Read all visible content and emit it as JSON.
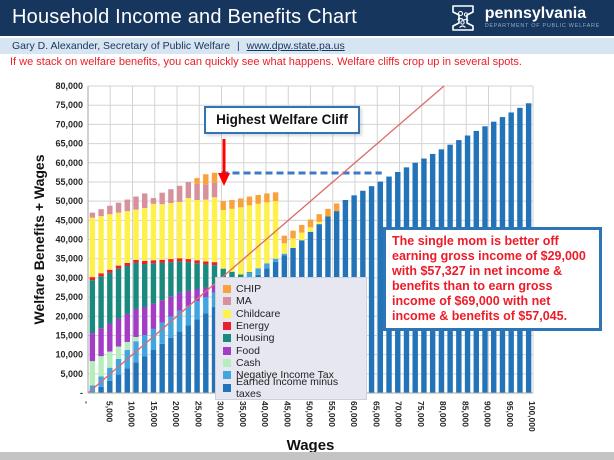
{
  "header": {
    "title": "Household Income and Benefits Chart",
    "brand": {
      "name": "pennsylvania",
      "dept": "DEPARTMENT OF PUBLIC WELFARE"
    }
  },
  "subheader": {
    "author": "Gary D. Alexander,  Secretary of Public Welfare",
    "divider": "|",
    "link": "www.dpw.state.pa.us"
  },
  "intro": {
    "text": "If we stack on welfare benefits, you can quickly see what happens. Welfare cliffs crop up in several spots."
  },
  "callout": {
    "label": "Highest Welfare Cliff"
  },
  "note": {
    "text": "The single mom is better off earning gross income of $29,000 with $57,327 in net income & benefits than to earn gross income of $69,000 with net income & benefits of $57,045."
  },
  "colors": {
    "header_navy": "#17365D",
    "subheader_blue": "#D7E4F1",
    "alert_red": "#EE1C25",
    "box_border_blue": "#2E75B6"
  },
  "chart_data": {
    "type": "bar",
    "stacked": true,
    "title": "",
    "xlabel": "Wages",
    "ylabel": "Welfare Benefits + Wages",
    "xlim": [
      0,
      100000
    ],
    "ylim": [
      0,
      80000
    ],
    "grid": true,
    "legend_position": "inside-center-left",
    "x_ticks": [
      "-",
      "5,000",
      "10,000",
      "15,000",
      "20,000",
      "25,000",
      "30,000",
      "35,000",
      "40,000",
      "45,000",
      "50,000",
      "55,000",
      "60,000",
      "65,000",
      "70,000",
      "75,000",
      "80,000",
      "85,000",
      "90,000",
      "95,000",
      "100,000"
    ],
    "y_ticks": [
      "-",
      "5,000",
      "10,000",
      "15,000",
      "20,000",
      "25,000",
      "30,000",
      "35,000",
      "40,000",
      "45,000",
      "50,000",
      "55,000",
      "60,000",
      "65,000",
      "70,000",
      "75,000",
      "80,000"
    ],
    "wages": [
      0,
      2000,
      4000,
      6000,
      8000,
      10000,
      12000,
      14000,
      16000,
      18000,
      20000,
      22000,
      24000,
      26000,
      28000,
      30000,
      32000,
      34000,
      36000,
      38000,
      40000,
      42000,
      44000,
      46000,
      48000,
      50000,
      52000,
      54000,
      56000,
      58000,
      60000,
      62000,
      64000,
      66000,
      68000,
      70000,
      72000,
      74000,
      76000,
      78000,
      80000,
      82000,
      84000,
      86000,
      88000,
      90000,
      92000,
      94000,
      96000,
      98000,
      100000
    ],
    "series": [
      {
        "name": "Earned Income minus taxes",
        "color": "#2273B8",
        "values": [
          0,
          1600,
          3200,
          4800,
          6400,
          8000,
          9600,
          11200,
          12800,
          14400,
          16000,
          17600,
          19200,
          20800,
          22400,
          24000,
          25700,
          27400,
          29100,
          30800,
          32500,
          34200,
          35900,
          37800,
          39800,
          42000,
          44000,
          46000,
          47400,
          50300,
          51500,
          52700,
          53900,
          55100,
          56400,
          57600,
          58800,
          60000,
          61100,
          62300,
          63500,
          64700,
          65900,
          67100,
          68300,
          69500,
          70700,
          71900,
          73100,
          74300,
          75500
        ]
      },
      {
        "name": "Negative Income Tax",
        "color": "#41A6E0",
        "values": [
          2000,
          2700,
          3400,
          4100,
          4800,
          5500,
          5500,
          5500,
          5500,
          5500,
          5500,
          5100,
          4700,
          4200,
          3800,
          3400,
          3000,
          2500,
          2100,
          1700,
          1300,
          800,
          400,
          0,
          0,
          0,
          0,
          0,
          0,
          0,
          0,
          0,
          0,
          0,
          0,
          0,
          0,
          0,
          0,
          0,
          0,
          0,
          0,
          0,
          0,
          0,
          0,
          0,
          0,
          0,
          0
        ]
      },
      {
        "name": "Cash",
        "color": "#B5EDBD",
        "values": [
          6300,
          5300,
          4200,
          3200,
          2100,
          1100,
          0,
          0,
          0,
          0,
          0,
          0,
          0,
          0,
          0,
          0,
          0,
          0,
          0,
          0,
          0,
          0,
          0,
          0,
          0,
          0,
          0,
          0,
          0,
          0,
          0,
          0,
          0,
          0,
          0,
          0,
          0,
          0,
          0,
          0,
          0,
          0,
          0,
          0,
          0,
          0,
          0,
          0,
          0,
          0,
          0
        ]
      },
      {
        "name": "Food",
        "color": "#A33DC6",
        "values": [
          7300,
          7300,
          7300,
          7300,
          7300,
          7300,
          7300,
          6600,
          5900,
          5200,
          4600,
          3900,
          3200,
          2500,
          1900,
          1200,
          500,
          0,
          0,
          0,
          0,
          0,
          0,
          0,
          0,
          0,
          0,
          0,
          0,
          0,
          0,
          0,
          0,
          0,
          0,
          0,
          0,
          0,
          0,
          0,
          0,
          0,
          0,
          0,
          0,
          0,
          0,
          0,
          0,
          0,
          0
        ]
      },
      {
        "name": "Housing",
        "color": "#1B8A7E",
        "values": [
          13800,
          13500,
          13200,
          13000,
          12500,
          12000,
          11200,
          10500,
          9700,
          9000,
          8200,
          7500,
          6700,
          6000,
          5200,
          3800,
          2400,
          1000,
          300,
          0,
          0,
          0,
          0,
          0,
          0,
          0,
          0,
          0,
          0,
          0,
          0,
          0,
          0,
          0,
          0,
          0,
          0,
          0,
          0,
          0,
          0,
          0,
          0,
          0,
          0,
          0,
          0,
          0,
          0,
          0,
          0
        ]
      },
      {
        "name": "Energy",
        "color": "#E8212E",
        "values": [
          800,
          800,
          800,
          800,
          800,
          800,
          800,
          800,
          800,
          800,
          800,
          800,
          800,
          800,
          800,
          0,
          0,
          0,
          0,
          0,
          0,
          0,
          0,
          0,
          0,
          0,
          0,
          0,
          0,
          0,
          0,
          0,
          0,
          0,
          0,
          0,
          0,
          0,
          0,
          0,
          0,
          0,
          0,
          0,
          0,
          0,
          0,
          0,
          0,
          0,
          0
        ]
      },
      {
        "name": "Childcare",
        "color": "#FFF04A",
        "values": [
          15500,
          14900,
          14500,
          13800,
          13500,
          13100,
          13800,
          14700,
          14500,
          14600,
          14700,
          15900,
          15700,
          16100,
          16900,
          15300,
          16400,
          17500,
          17400,
          16800,
          15900,
          15000,
          2700,
          2500,
          2000,
          1200,
          600,
          0,
          0,
          0,
          0,
          0,
          0,
          0,
          0,
          0,
          0,
          0,
          0,
          0,
          0,
          0,
          0,
          0,
          0,
          0,
          0,
          0,
          0,
          0,
          0
        ]
      },
      {
        "name": "MA",
        "color": "#D6919C",
        "values": [
          1300,
          1800,
          2200,
          2600,
          3000,
          3400,
          3800,
          1500,
          3000,
          3600,
          4200,
          4200,
          4200,
          4000,
          3800,
          0,
          0,
          0,
          0,
          0,
          0,
          0,
          0,
          0,
          0,
          0,
          0,
          0,
          0,
          0,
          0,
          0,
          0,
          0,
          0,
          0,
          0,
          0,
          0,
          0,
          0,
          0,
          0,
          0,
          0,
          0,
          0,
          0,
          0,
          0,
          0
        ]
      },
      {
        "name": "CHIP",
        "color": "#F9A23C",
        "values": [
          0,
          0,
          0,
          0,
          0,
          0,
          0,
          0,
          0,
          0,
          0,
          0,
          1500,
          2600,
          2600,
          2300,
          2300,
          2300,
          2300,
          2300,
          2300,
          2300,
          2000,
          2000,
          2000,
          2000,
          2000,
          2000,
          2000,
          0,
          0,
          0,
          0,
          0,
          0,
          0,
          0,
          0,
          0,
          0,
          0,
          0,
          0,
          0,
          0,
          0,
          0,
          0,
          0,
          0,
          0
        ]
      }
    ],
    "reference_lines": {
      "cliff_line": {
        "y_value": 57327,
        "x_from": 30000,
        "x_to": 66000,
        "color": "#3D79C9",
        "style": "dashed"
      },
      "wages_line": {
        "from": [
          0,
          0
        ],
        "to": [
          80000,
          80000
        ],
        "color": "#DB6B6B",
        "style": "solid"
      }
    },
    "annotations": {
      "peak_wage": 29000,
      "peak_net": 57327,
      "compare_wage": 69000,
      "compare_net": 57045
    }
  }
}
